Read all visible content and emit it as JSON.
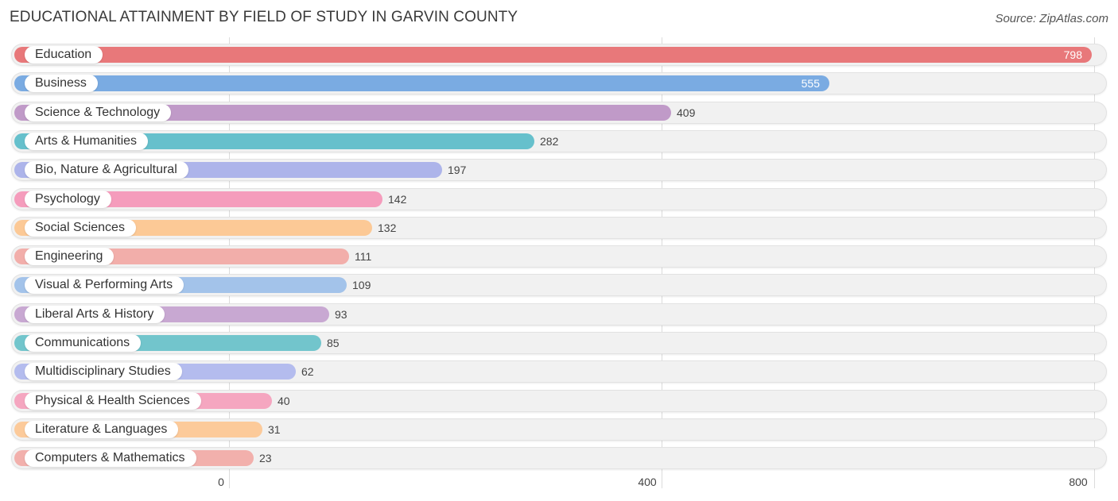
{
  "chart_data": {
    "type": "bar",
    "orientation": "horizontal",
    "title": "EDUCATIONAL ATTAINMENT BY FIELD OF STUDY IN GARVIN COUNTY",
    "source": "Source: ZipAtlas.com",
    "categories": [
      "Education",
      "Business",
      "Science & Technology",
      "Arts & Humanities",
      "Bio, Nature & Agricultural",
      "Psychology",
      "Social Sciences",
      "Engineering",
      "Visual & Performing Arts",
      "Liberal Arts & History",
      "Communications",
      "Multidisciplinary Studies",
      "Physical & Health Sciences",
      "Literature & Languages",
      "Computers & Mathematics"
    ],
    "values": [
      798,
      555,
      409,
      282,
      197,
      142,
      132,
      111,
      109,
      93,
      85,
      62,
      40,
      31,
      23
    ],
    "colors": [
      "#e8787a",
      "#7aabe2",
      "#c09ac8",
      "#66c0cc",
      "#adb4ea",
      "#f59cbc",
      "#fcc996",
      "#f2aeaa",
      "#a3c3ea",
      "#c8a8d2",
      "#72c5cc",
      "#b4bcee",
      "#f5a6c0",
      "#fcca9a",
      "#f2b0ac"
    ],
    "xlim": [
      0,
      800
    ],
    "xticks": [
      0,
      400,
      800
    ],
    "xlabel": "",
    "ylabel": ""
  }
}
